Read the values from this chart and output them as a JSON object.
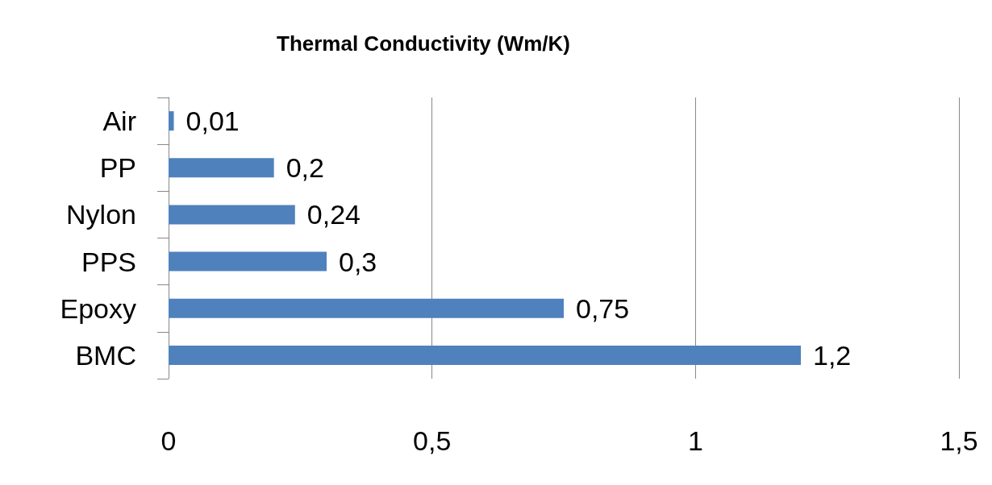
{
  "chart_data": {
    "type": "bar",
    "orientation": "horizontal",
    "title": "Thermal Conductivity (Wm/K)",
    "categories": [
      "Air",
      "PP",
      "Nylon",
      "PPS",
      "Epoxy",
      "BMC"
    ],
    "values": [
      0.01,
      0.2,
      0.24,
      0.3,
      0.75,
      1.2
    ],
    "value_labels": [
      "0,01",
      "0,2",
      "0,24",
      "0,3",
      "0,75",
      "1,2"
    ],
    "color": "#4f81bd",
    "xlim": [
      0,
      1.5
    ],
    "xticks": [
      0,
      {
        "value": 0.5,
        "label": "0,5"
      },
      1,
      {
        "value": 1.5,
        "label": "1,5"
      }
    ],
    "grid": "x"
  }
}
